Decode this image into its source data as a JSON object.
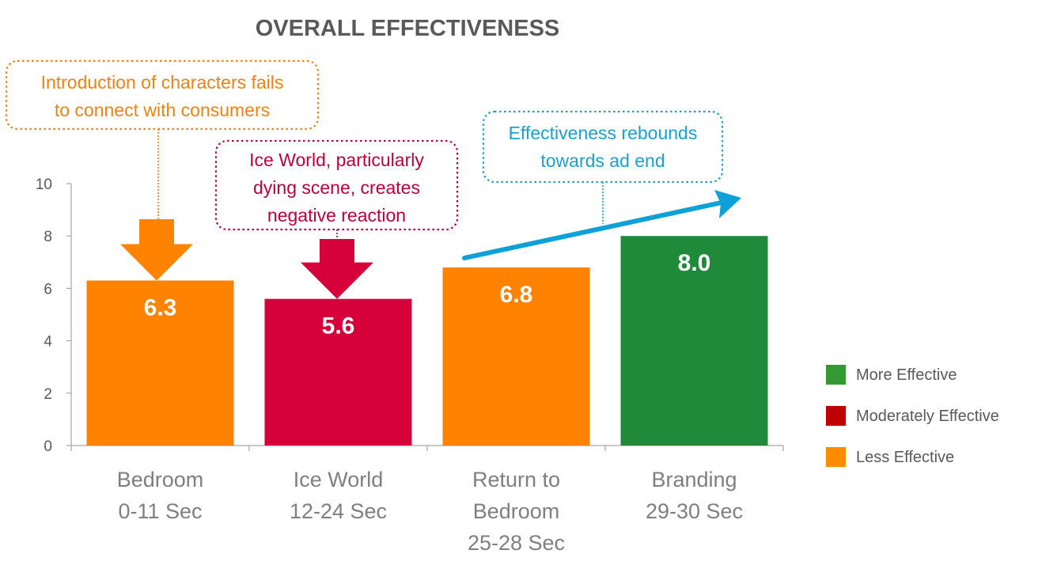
{
  "chart_data": {
    "type": "bar",
    "title": "OVERALL EFFECTIVENESS",
    "ylim": [
      0,
      10
    ],
    "yticks": [
      0,
      2,
      4,
      6,
      8,
      10
    ],
    "categories": [
      [
        "Bedroom",
        "0-11 Sec"
      ],
      [
        "Ice World",
        "12-24 Sec"
      ],
      [
        "Return to",
        "Bedroom",
        "25-28 Sec"
      ],
      [
        "Branding",
        "29-30 Sec"
      ]
    ],
    "values": [
      6.3,
      5.6,
      6.8,
      8.0
    ],
    "value_labels": [
      "6.3",
      "5.6",
      "6.8",
      "8.0"
    ],
    "bar_levels": [
      "Less Effective",
      "Moderately Effective",
      "Less Effective",
      "More Effective"
    ],
    "grid": false,
    "legend_position": "right",
    "legend": [
      {
        "label": "More Effective",
        "color": "#339933"
      },
      {
        "label": "Moderately Effective",
        "color": "#c00000"
      },
      {
        "label": "Less Effective",
        "color": "#ff8c00"
      }
    ],
    "annotations": [
      {
        "lines": [
          "Introduction of characters fails",
          "to connect with consumers"
        ],
        "color": "#f0820f",
        "target_bar": 0
      },
      {
        "lines": [
          "Ice World, particularly",
          "dying scene, creates",
          "negative reaction"
        ],
        "color": "#c0003c",
        "target_bar": 1
      },
      {
        "lines": [
          "Effectiveness  rebounds",
          "towards ad end"
        ],
        "color": "#1aa0d2",
        "target_bar": 3
      }
    ]
  },
  "colors": {
    "less": "#ff8200",
    "moderate": "#d6003a",
    "more": "#1f8a3a",
    "arrow_blue": "#0ea0d8",
    "axis": "#a6a6a6"
  }
}
